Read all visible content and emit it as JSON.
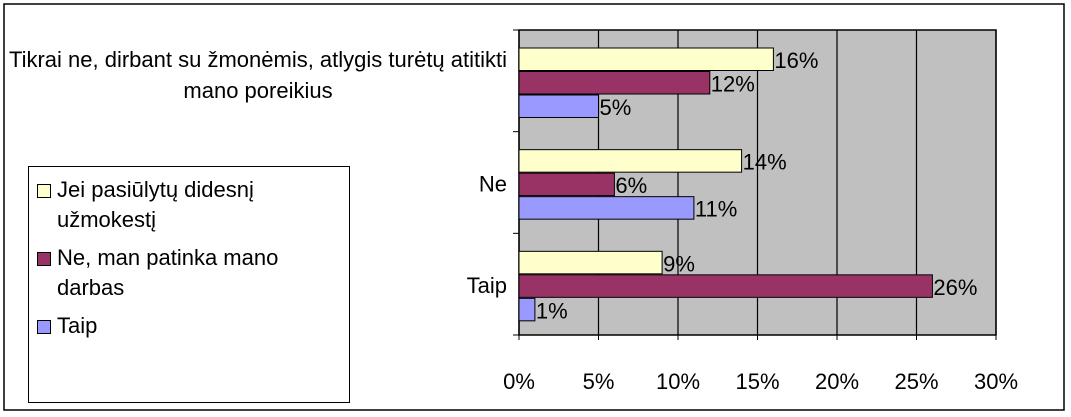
{
  "chart_data": {
    "type": "bar",
    "orientation": "horizontal",
    "categories": [
      "Tikrai ne, dirbant su žmonėmis, atlygis turėtų atitikti mano poreikius",
      "Ne",
      "Taip"
    ],
    "series": [
      {
        "name": "Jei pasiūlytų didesnį užmokestį",
        "color": "#ffffcc",
        "values": [
          16,
          14,
          9
        ],
        "value_labels": [
          "16%",
          "14%",
          "9%"
        ]
      },
      {
        "name": "Ne, man patinka mano darbas",
        "color": "#993366",
        "values": [
          12,
          6,
          26
        ],
        "value_labels": [
          "12%",
          "6%",
          "26%"
        ]
      },
      {
        "name": "Taip",
        "color": "#9999ff",
        "values": [
          5,
          11,
          1
        ],
        "value_labels": [
          "5%",
          "11%",
          "1%"
        ]
      }
    ],
    "xlim": [
      0,
      30
    ],
    "xticks": [
      {
        "value": 0,
        "label": "0%"
      },
      {
        "value": 5,
        "label": "5%"
      },
      {
        "value": 10,
        "label": "10%"
      },
      {
        "value": 15,
        "label": "15%"
      },
      {
        "value": 20,
        "label": "20%"
      },
      {
        "value": 25,
        "label": "25%"
      },
      {
        "value": 30,
        "label": "30%"
      }
    ],
    "grid": true,
    "legend": "left",
    "plot_background": "#c0c0c0"
  }
}
